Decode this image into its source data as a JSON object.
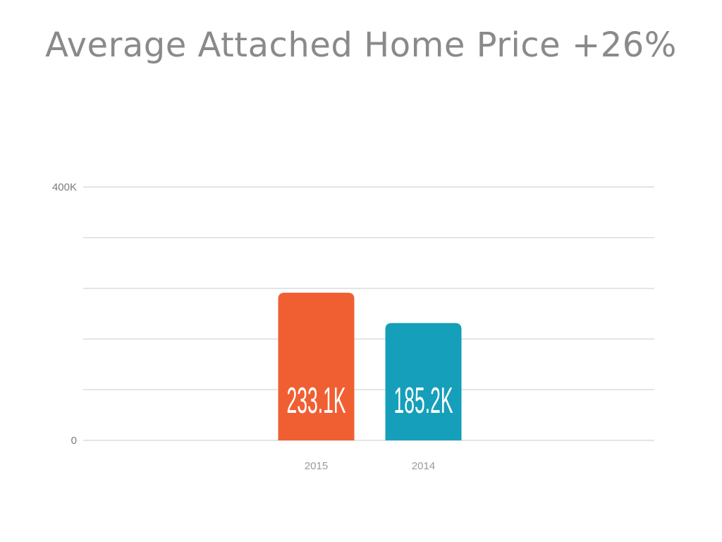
{
  "page": {
    "title": "Average Attached Home Price +26%"
  },
  "chart_data": {
    "type": "bar",
    "title": "Average Attached Home Price +26%",
    "categories": [
      "2015",
      "2014"
    ],
    "values": [
      233.1,
      185.2
    ],
    "value_labels": [
      "233.1K",
      "185.2K"
    ],
    "bar_colors": [
      "#f05f32",
      "#159fba"
    ],
    "xlabel": "",
    "ylabel": "",
    "ylim": [
      0,
      400
    ],
    "y_ticks": [
      {
        "value": 0,
        "label": "0"
      },
      {
        "value": 400,
        "label": "400K"
      }
    ],
    "gridlines": [
      0,
      80,
      160,
      240,
      320,
      400
    ],
    "grid": true,
    "legend": "none"
  }
}
